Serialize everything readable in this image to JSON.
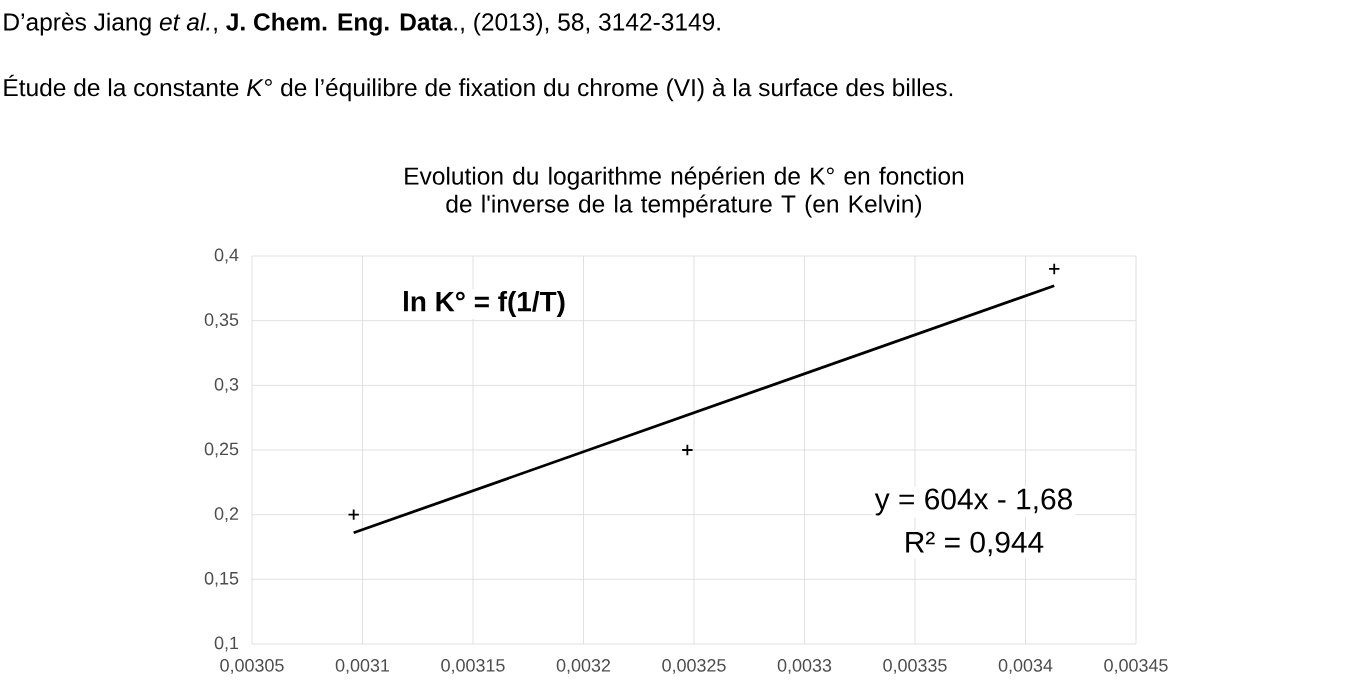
{
  "chart_data": {
    "type": "scatter",
    "title": "Evolution du logarithme népérien de K° en fonction de l'inverse de la température T (en Kelvin)",
    "annotations": [
      "D’après Jiang *et al.*, **J. Chem. Eng. Data**., (2013), 58, 3142-3149.",
      "Étude de la constante *K*° de l’équilibre de fixation du chrome (VI) à la surface des billes.",
      "ln K° = f(1/T)",
      "y = 604x - 1,68",
      "R² = 0,944"
    ],
    "series": [
      {
        "color": "#000000",
        "marker": "cross",
        "x": [
          0.003096,
          0.003247,
          0.003413
        ],
        "values": [
          0.2,
          0.25,
          0.39
        ]
      },
      {
        "type": "line",
        "color": "#000000",
        "marker": "none",
        "line_style": "solid",
        "x": [
          0.003096,
          0.003413
        ],
        "values": [
          0.186,
          0.377
        ]
      }
    ],
    "xlim": [
      0.00305,
      0.00345
    ],
    "xticks": [
      {
        "value": 0.00305,
        "label": "0,00305"
      },
      {
        "value": 0.0031,
        "label": "0,0031"
      },
      {
        "value": 0.00315,
        "label": "0,00315"
      },
      {
        "value": 0.0032,
        "label": "0,0032"
      },
      {
        "value": 0.00325,
        "label": "0,00325"
      },
      {
        "value": 0.0033,
        "label": "0,0033"
      },
      {
        "value": 0.00335,
        "label": "0,00335"
      },
      {
        "value": 0.0034,
        "label": "0,0034"
      },
      {
        "value": 0.00345,
        "label": "0,00345"
      }
    ],
    "ylim": [
      0.1,
      0.4
    ],
    "yticks": [
      {
        "value": 0.1,
        "label": "0,1"
      },
      {
        "value": 0.15,
        "label": "0,15"
      },
      {
        "value": 0.2,
        "label": "0,2"
      },
      {
        "value": 0.25,
        "label": "0,25"
      },
      {
        "value": 0.3,
        "label": "0,3"
      },
      {
        "value": 0.35,
        "label": "0,35"
      },
      {
        "value": 0.4,
        "label": "0,4"
      }
    ],
    "grid": true
  }
}
